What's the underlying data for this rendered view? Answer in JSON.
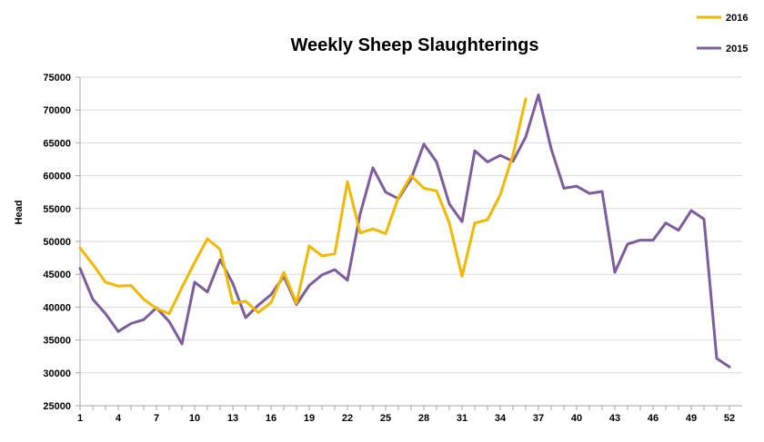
{
  "chart_data": {
    "type": "line",
    "title": "Weekly Sheep Slaughterings",
    "xlabel": "",
    "ylabel": "Head",
    "xlim": [
      1,
      52
    ],
    "ylim": [
      25000,
      75000
    ],
    "y_ticks": [
      25000,
      30000,
      35000,
      40000,
      45000,
      50000,
      55000,
      60000,
      65000,
      70000,
      75000
    ],
    "x_ticks": [
      1,
      4,
      7,
      10,
      13,
      16,
      19,
      22,
      25,
      28,
      31,
      34,
      37,
      40,
      43,
      46,
      49,
      52
    ],
    "grid": {
      "horizontal": true,
      "vertical": false
    },
    "legend_position": "top-right",
    "series": [
      {
        "name": "2016",
        "color": "#F5B800",
        "x": [
          1,
          2,
          3,
          4,
          5,
          6,
          7,
          8,
          9,
          10,
          11,
          12,
          13,
          14,
          15,
          16,
          17,
          18,
          19,
          20,
          21,
          22,
          23,
          24,
          25,
          26,
          27,
          28,
          29,
          30,
          31,
          32,
          33,
          34,
          35,
          36
        ],
        "values": [
          49000,
          46500,
          43800,
          43200,
          43300,
          41200,
          39800,
          39000,
          43000,
          46800,
          50400,
          48800,
          40600,
          40900,
          39200,
          40700,
          45300,
          40600,
          49300,
          47800,
          48100,
          59100,
          51300,
          51900,
          51200,
          56700,
          60000,
          58100,
          57700,
          52800,
          44700,
          52800,
          53300,
          57100,
          63200,
          71700
        ]
      },
      {
        "name": "2015",
        "color": "#7D5CA0",
        "x": [
          1,
          2,
          3,
          4,
          5,
          6,
          7,
          8,
          9,
          10,
          11,
          12,
          13,
          14,
          15,
          16,
          17,
          18,
          19,
          20,
          21,
          22,
          23,
          24,
          25,
          26,
          27,
          28,
          29,
          30,
          31,
          32,
          33,
          34,
          35,
          36,
          37,
          38,
          39,
          40,
          41,
          42,
          43,
          44,
          45,
          46,
          47,
          48,
          49,
          50,
          51,
          52
        ],
        "values": [
          45900,
          41200,
          39000,
          36300,
          37500,
          38100,
          39900,
          37800,
          34400,
          43800,
          42300,
          47200,
          43600,
          38400,
          40300,
          41900,
          44700,
          40400,
          43300,
          44900,
          45700,
          44100,
          54200,
          61200,
          57500,
          56500,
          59500,
          64800,
          62100,
          55700,
          53000,
          63800,
          62100,
          63100,
          62200,
          65900,
          72300,
          64100,
          58100,
          58400,
          57300,
          57600,
          45300,
          49600,
          50200,
          50200,
          52800,
          51700,
          54700,
          53400,
          32200,
          30900
        ]
      }
    ]
  }
}
